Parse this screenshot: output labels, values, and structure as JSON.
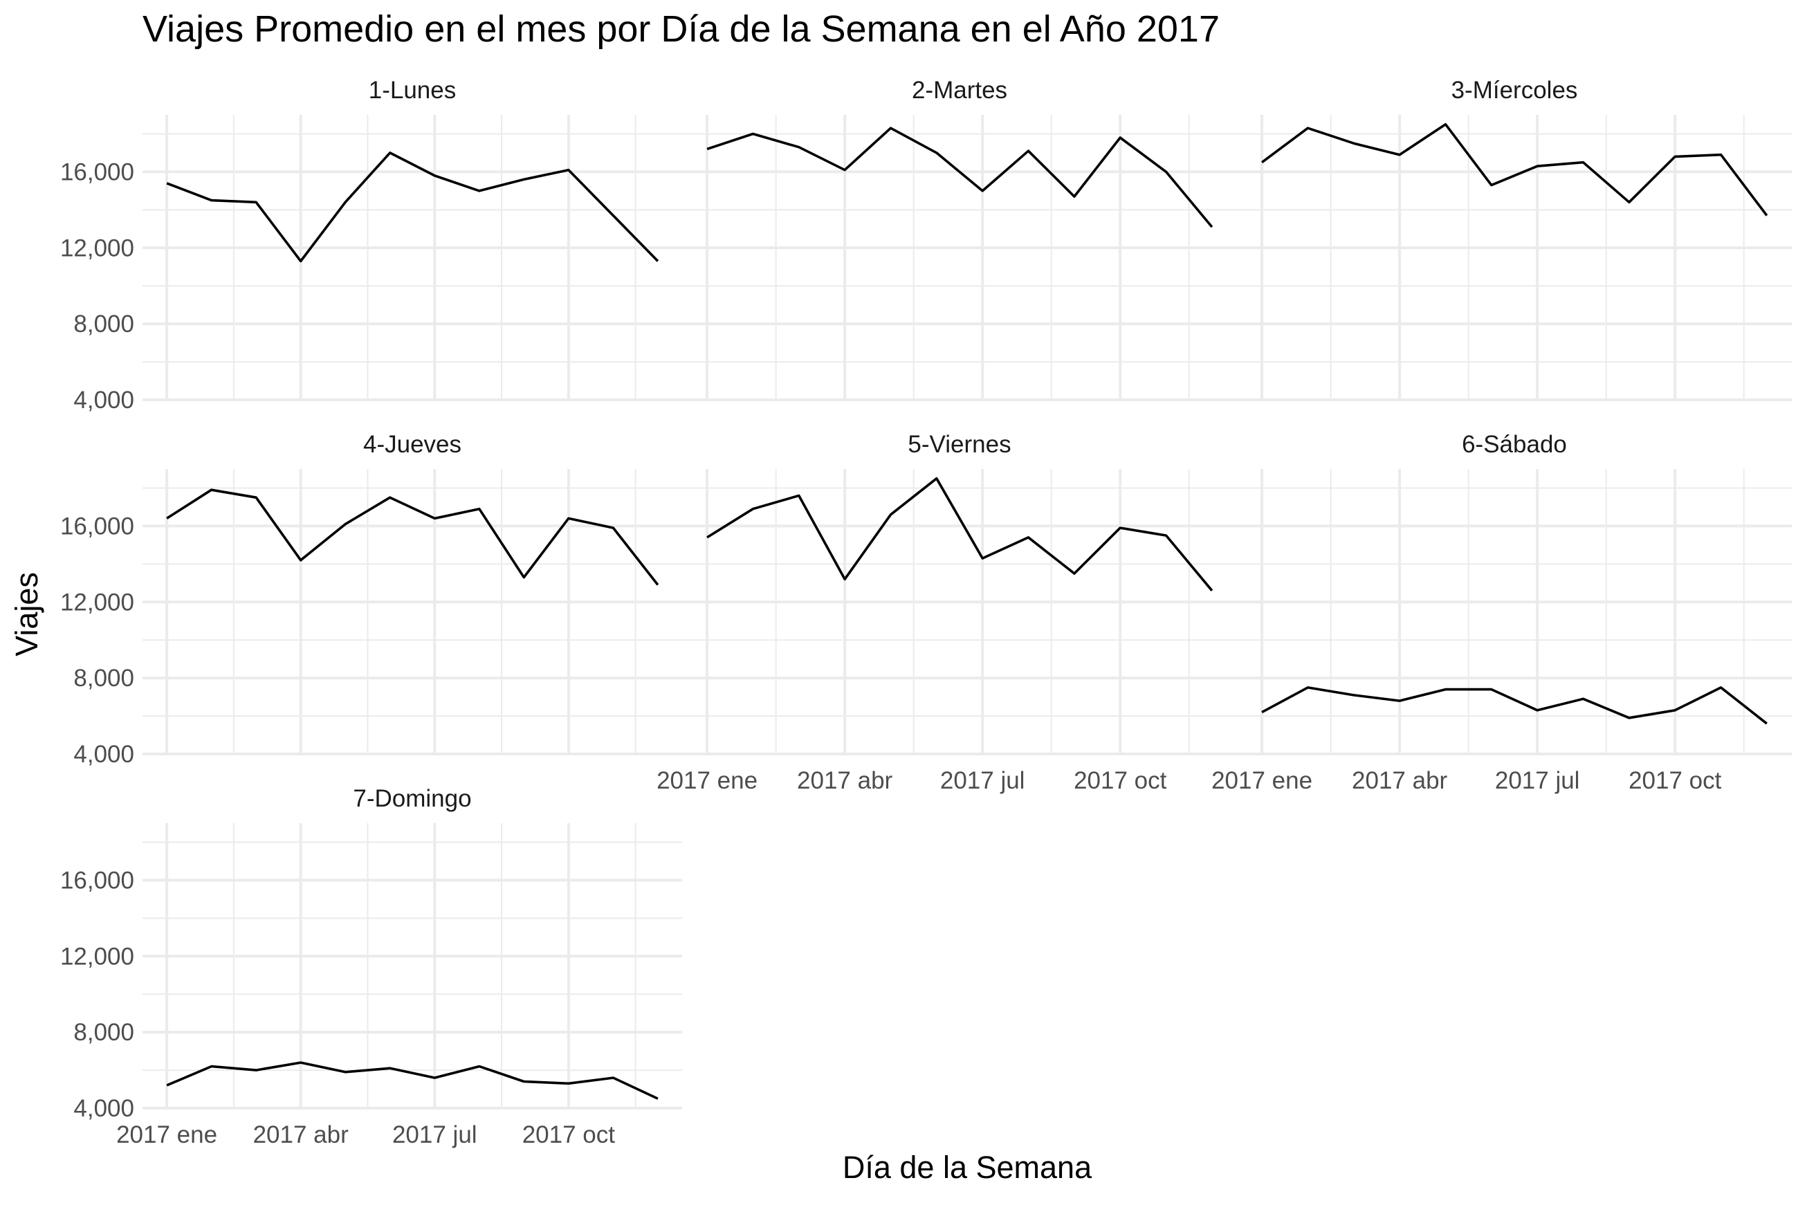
{
  "chart_data": {
    "type": "line",
    "title": "Viajes Promedio en el mes por Día de la Semana en el Año 2017",
    "xlabel": "Día de la Semana",
    "ylabel": "Viajes",
    "x": [
      "2017-01",
      "2017-02",
      "2017-03",
      "2017-04",
      "2017-05",
      "2017-06",
      "2017-07",
      "2017-08",
      "2017-09",
      "2017-10",
      "2017-11",
      "2017-12"
    ],
    "xticks": [
      {
        "x": "2017-01",
        "label": "2017 ene"
      },
      {
        "x": "2017-04",
        "label": "2017 abr"
      },
      {
        "x": "2017-07",
        "label": "2017 jul"
      },
      {
        "x": "2017-10",
        "label": "2017 oct"
      }
    ],
    "yticks": [
      {
        "value": 4000,
        "label": "4,000"
      },
      {
        "value": 8000,
        "label": "8,000"
      },
      {
        "value": 12000,
        "label": "12,000"
      },
      {
        "value": 16000,
        "label": "16,000"
      }
    ],
    "ylim": [
      4000,
      19000
    ],
    "grid": true,
    "line_color": "#000000",
    "panels": [
      {
        "name": "1-Lunes",
        "values": [
          15400,
          14500,
          14400,
          11300,
          14400,
          17000,
          15800,
          15000,
          15600,
          16100,
          13700,
          11300
        ]
      },
      {
        "name": "2-Martes",
        "values": [
          17200,
          18000,
          17300,
          16100,
          18300,
          17000,
          15000,
          17100,
          14700,
          17800,
          16000,
          13100
        ]
      },
      {
        "name": "3-Míercoles",
        "values": [
          16500,
          18300,
          17500,
          16900,
          18500,
          15300,
          16300,
          16500,
          14400,
          16800,
          16900,
          13700
        ]
      },
      {
        "name": "4-Jueves",
        "values": [
          16400,
          17900,
          17500,
          14200,
          16100,
          17500,
          16400,
          16900,
          13300,
          16400,
          15900,
          12900
        ]
      },
      {
        "name": "5-Viernes",
        "values": [
          15400,
          16900,
          17600,
          13200,
          16600,
          18500,
          14300,
          15400,
          13500,
          15900,
          15500,
          12600
        ]
      },
      {
        "name": "6-Sábado",
        "values": [
          6200,
          7500,
          7100,
          6800,
          7400,
          7400,
          6300,
          6900,
          5900,
          6300,
          7500,
          5600
        ]
      },
      {
        "name": "7-Domingo",
        "values": [
          5200,
          6200,
          6000,
          6400,
          5900,
          6100,
          5600,
          6200,
          5400,
          5300,
          5600,
          4500
        ]
      }
    ]
  }
}
